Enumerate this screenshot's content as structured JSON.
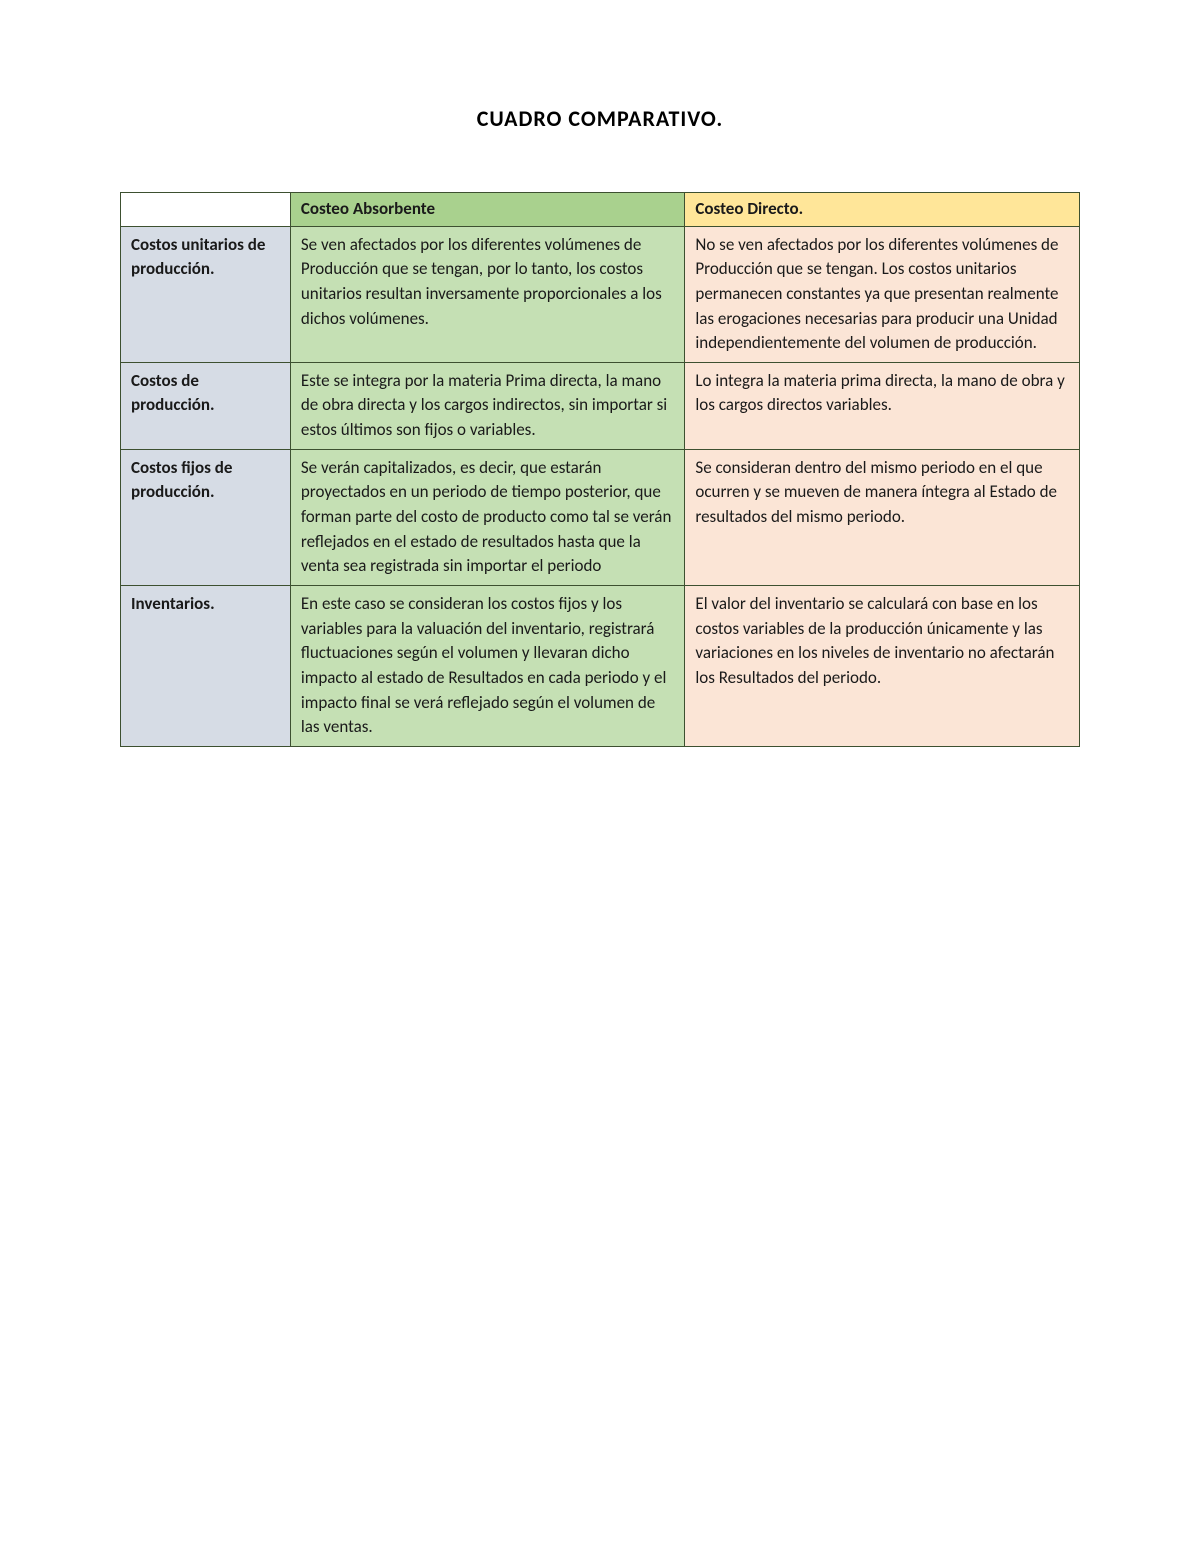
{
  "title": "CUADRO COMPARATIVO.",
  "table": {
    "type": "table",
    "columns": {
      "rowhead_width": 170,
      "absorb_width": 395,
      "direct_width": 395
    },
    "colors": {
      "border": "#3d5030",
      "rowhead_bg": "#d6dce5",
      "absorb_bg": "#c5e0b4",
      "direct_bg": "#fbe5d6",
      "header_absorb_bg": "#a9d18e",
      "header_direct_bg": "#ffe699",
      "header_empty_bg": "#ffffff",
      "text": "#1a1a1a",
      "page_bg": "#ffffff"
    },
    "typography": {
      "title_fontsize": 22,
      "title_weight": "bold",
      "cell_fontsize": 17,
      "header_weight": "bold",
      "rowhead_weight": "bold",
      "font_family": "Calibri"
    },
    "headers": {
      "absorb": "Costeo Absorbente",
      "direct": "Costeo Directo."
    },
    "rows": [
      {
        "label": "Costos unitarios de producción.",
        "absorb": "Se ven afectados por los diferentes volúmenes de Producción que se tengan, por lo tanto, los costos unitarios resultan inversamente proporcionales a los dichos volúmenes.",
        "direct": "No se ven afectados por los diferentes volúmenes de Producción que se tengan. Los costos unitarios permanecen constantes ya que presentan realmente las erogaciones necesarias para producir una Unidad independientemente del volumen de producción."
      },
      {
        "label": "Costos de producción.",
        "absorb": "Este se integra por la materia Prima directa, la mano de obra directa y los cargos indirectos, sin importar si estos últimos son fijos o variables.",
        "direct": "Lo integra la materia prima directa, la mano de obra y los cargos directos variables."
      },
      {
        "label": "Costos fijos de producción.",
        "absorb": "Se verán capitalizados, es decir, que estarán proyectados en un periodo de tiempo posterior, que forman parte del costo de producto como tal se verán reflejados en el estado de resultados hasta que la venta sea registrada sin importar el periodo",
        "direct": "Se consideran dentro del mismo periodo en el que ocurren y se mueven de manera íntegra al Estado de resultados del mismo periodo."
      },
      {
        "label": "Inventarios.",
        "absorb": "En este caso se consideran los costos fijos y los variables para la valuación del inventario, registrará fluctuaciones según el volumen y llevaran dicho impacto al estado de Resultados en cada periodo y el impacto final se verá reflejado según el volumen de las ventas.",
        "direct": "El valor del inventario se calculará con base en los costos variables de la producción únicamente y las variaciones en los niveles de inventario no afectarán los Resultados del periodo."
      }
    ]
  }
}
